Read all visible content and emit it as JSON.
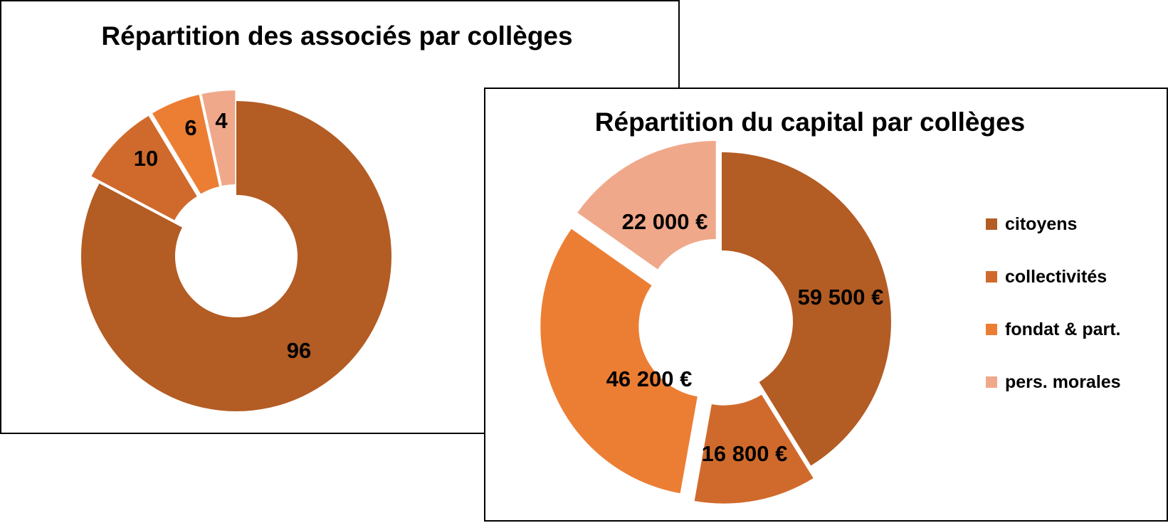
{
  "chart_data": [
    {
      "type": "pie",
      "variant": "donut-exploded",
      "title": "Répartition des associés par collèges",
      "categories": [
        "citoyens",
        "collectivités",
        "fondat & part.",
        "pers. morales"
      ],
      "values": [
        96,
        10,
        6,
        4
      ],
      "data_labels": [
        "96",
        "10",
        "6",
        "4"
      ],
      "colors": [
        "#b35c24",
        "#d06a2c",
        "#ec7e34",
        "#f0a88a"
      ],
      "legend": "none"
    },
    {
      "type": "pie",
      "variant": "donut-exploded",
      "title": "Répartition du capital par collèges",
      "categories": [
        "citoyens",
        "collectivités",
        "fondat & part.",
        "pers. morales"
      ],
      "values": [
        59500,
        16800,
        46200,
        22000
      ],
      "data_labels": [
        "59 500 €",
        "16 800 €",
        "46 200 €",
        "22 000 €"
      ],
      "colors": [
        "#b35c24",
        "#d06a2c",
        "#ec7e34",
        "#f0a88a"
      ],
      "legend": "right"
    }
  ]
}
